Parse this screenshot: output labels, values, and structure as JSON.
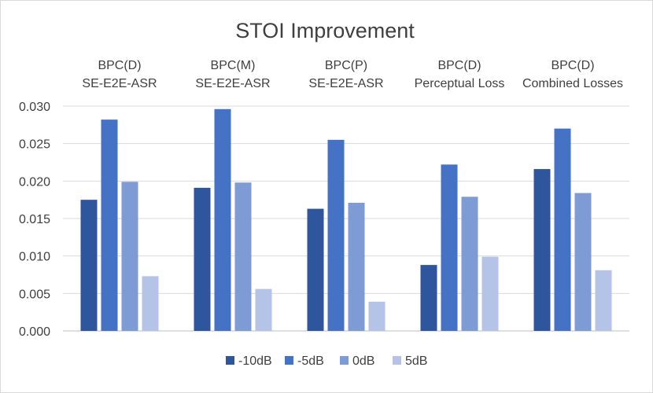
{
  "chart_data": {
    "type": "bar",
    "title": "STOI Improvement",
    "xlabel": "",
    "ylabel": "",
    "ylim": [
      0,
      0.03
    ],
    "yticks": [
      "0.000",
      "0.005",
      "0.010",
      "0.015",
      "0.020",
      "0.025",
      "0.030"
    ],
    "grid": true,
    "legend_position": "bottom",
    "categories": [
      [
        "BPC(D)",
        "SE-E2E-ASR"
      ],
      [
        "BPC(M)",
        "SE-E2E-ASR"
      ],
      [
        "BPC(P)",
        "SE-E2E-ASR"
      ],
      [
        "BPC(D)",
        "Perceptual Loss"
      ],
      [
        "BPC(D)",
        "Combined Losses"
      ]
    ],
    "series": [
      {
        "name": "-10dB",
        "color": "#2f569c",
        "values": [
          0.0175,
          0.0191,
          0.0163,
          0.0088,
          0.0216
        ]
      },
      {
        "name": "-5dB",
        "color": "#4472c4",
        "values": [
          0.0282,
          0.0296,
          0.0255,
          0.0222,
          0.027
        ]
      },
      {
        "name": "0dB",
        "color": "#7f9bd6",
        "values": [
          0.0199,
          0.0198,
          0.0171,
          0.0179,
          0.0184
        ]
      },
      {
        "name": "5dB",
        "color": "#b4c3e6",
        "values": [
          0.0073,
          0.0056,
          0.0039,
          0.0099,
          0.0081
        ]
      }
    ]
  }
}
